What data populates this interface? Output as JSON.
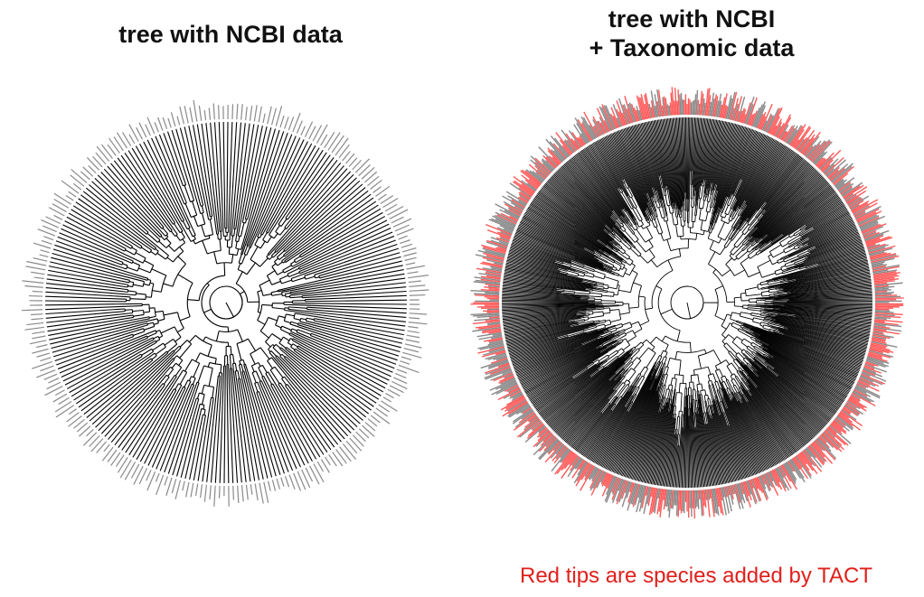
{
  "figure": {
    "left_panel": {
      "title": "tree with NCBI data"
    },
    "right_panel": {
      "title_line1": "tree with NCBI",
      "title_line2": "+ Taxonomic data"
    },
    "caption": "Red tips are species added by TACT"
  },
  "colors": {
    "branch": "#000000",
    "ncbi_tip": "#8a8a8a",
    "tact_tip": "#ff5a5a",
    "caption": "#e0201c",
    "background": "#ffffff"
  },
  "trees": [
    {
      "name": "ncbi-tree",
      "tips": 260,
      "tact_added": false
    },
    {
      "name": "ncbi-taxonomic-tree",
      "tips": 900,
      "tact_added": true
    }
  ]
}
